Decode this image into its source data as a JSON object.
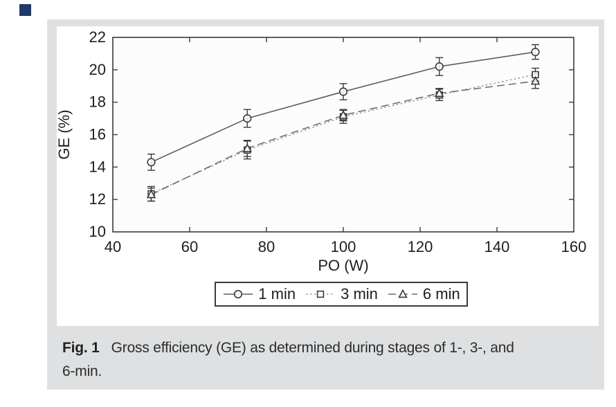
{
  "brand": {
    "accent_color": "#1e3a66"
  },
  "caption": {
    "label": "Fig. 1",
    "line1": "Gross efficiency (GE) as determined during stages of 1-, 3-, and",
    "line2": "6-min."
  },
  "chart_data": {
    "type": "line",
    "title": "",
    "xlabel": "PO (W)",
    "ylabel": "GE (%)",
    "xlim": [
      40,
      160
    ],
    "ylim": [
      10,
      22
    ],
    "xticks": [
      40,
      60,
      80,
      100,
      120,
      140,
      160
    ],
    "yticks": [
      10,
      12,
      14,
      16,
      18,
      20,
      22
    ],
    "grid": false,
    "legend_position": "below-axis",
    "error_bars": true,
    "x": [
      50,
      75,
      100,
      125,
      150
    ],
    "series": [
      {
        "name": "1 min",
        "marker": "circle",
        "line_style": "solid",
        "line_color": "#5c5c5c",
        "values": [
          14.3,
          17.0,
          18.65,
          20.2,
          21.1
        ],
        "errors": [
          0.5,
          0.55,
          0.5,
          0.55,
          0.45
        ]
      },
      {
        "name": "3 min",
        "marker": "square",
        "line_style": "dotted",
        "line_color": "#9b9b9b",
        "values": [
          12.35,
          15.05,
          17.1,
          18.45,
          19.7
        ],
        "errors": [
          0.45,
          0.55,
          0.4,
          0.35,
          0.4
        ]
      },
      {
        "name": "6 min",
        "marker": "triangle",
        "line_style": "dashed",
        "line_color": "#6e6e6e",
        "values": [
          12.3,
          15.15,
          17.2,
          18.55,
          19.3
        ],
        "errors": [
          0.4,
          0.5,
          0.35,
          0.3,
          0.45
        ]
      }
    ],
    "frame_color": "#3a3a3a",
    "marker_color": "#3a3a3a",
    "text_color": "#1d1d1d"
  }
}
